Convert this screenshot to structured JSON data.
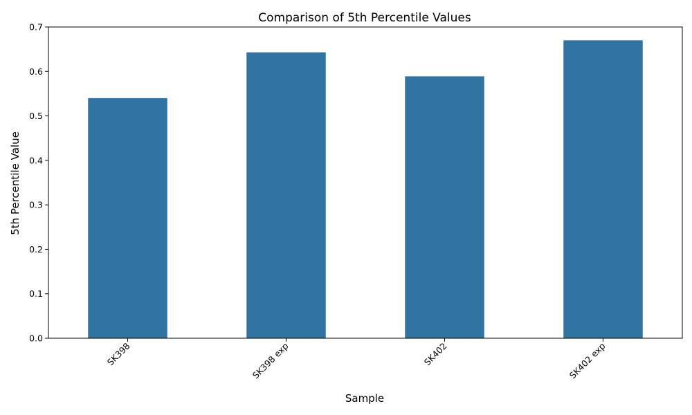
{
  "chart_data": {
    "type": "bar",
    "title": "Comparison of 5th Percentile Values",
    "xlabel": "Sample",
    "ylabel": "5th Percentile Value",
    "categories": [
      "SK398",
      "SK398 exp",
      "SK402",
      "SK402 exp"
    ],
    "values": [
      0.54,
      0.643,
      0.589,
      0.67
    ],
    "ylim": [
      0,
      0.7
    ],
    "yticks": [
      "0.0",
      "0.1",
      "0.2",
      "0.3",
      "0.4",
      "0.5",
      "0.6",
      "0.7"
    ],
    "grid": false,
    "legend": "none",
    "bar_color": "#3274a1"
  }
}
